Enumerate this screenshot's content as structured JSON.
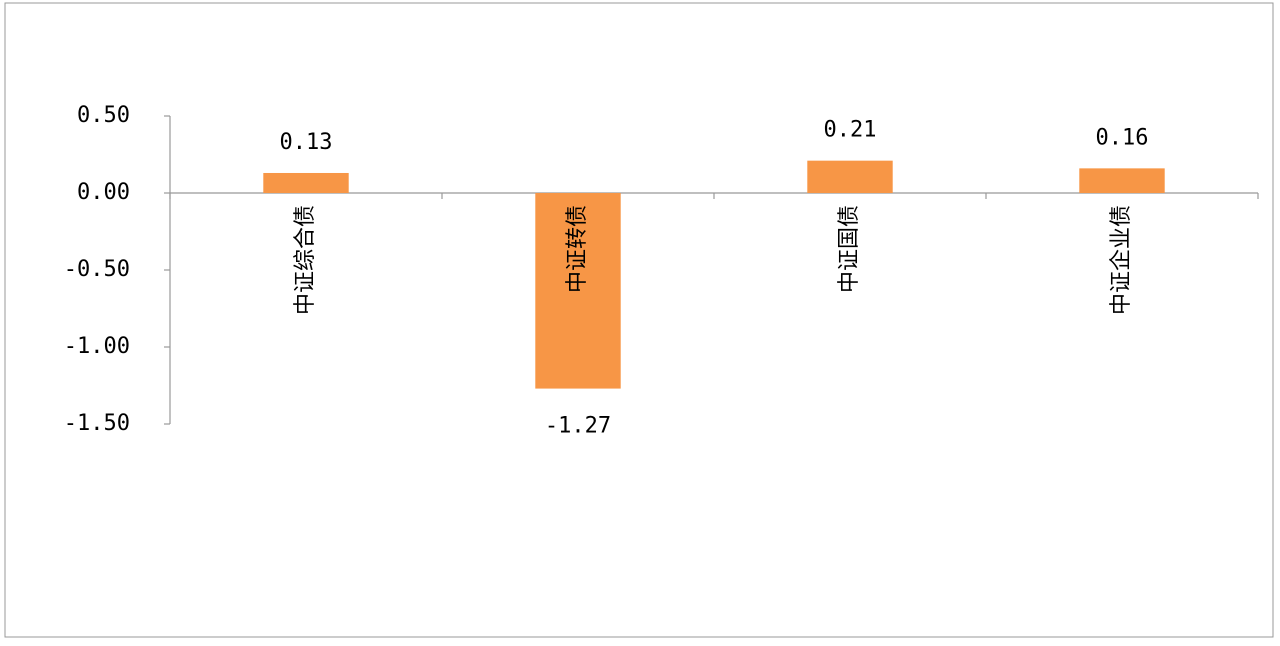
{
  "chart_data": {
    "type": "bar",
    "categories": [
      "中证综合债",
      "中证转债",
      "中证国债",
      "中证企业债"
    ],
    "values": [
      0.13,
      -1.27,
      0.21,
      0.16
    ],
    "color": "#f79646",
    "ylim": [
      -1.5,
      0.5
    ],
    "yticks": [
      {
        "value": 0.5,
        "label": "0.50"
      },
      {
        "value": 0,
        "label": "0.00"
      },
      {
        "value": -0.5,
        "label": "-0.50"
      },
      {
        "value": -1,
        "label": "-1.00"
      },
      {
        "value": -1.5,
        "label": "-1.50"
      }
    ],
    "grid": false
  }
}
